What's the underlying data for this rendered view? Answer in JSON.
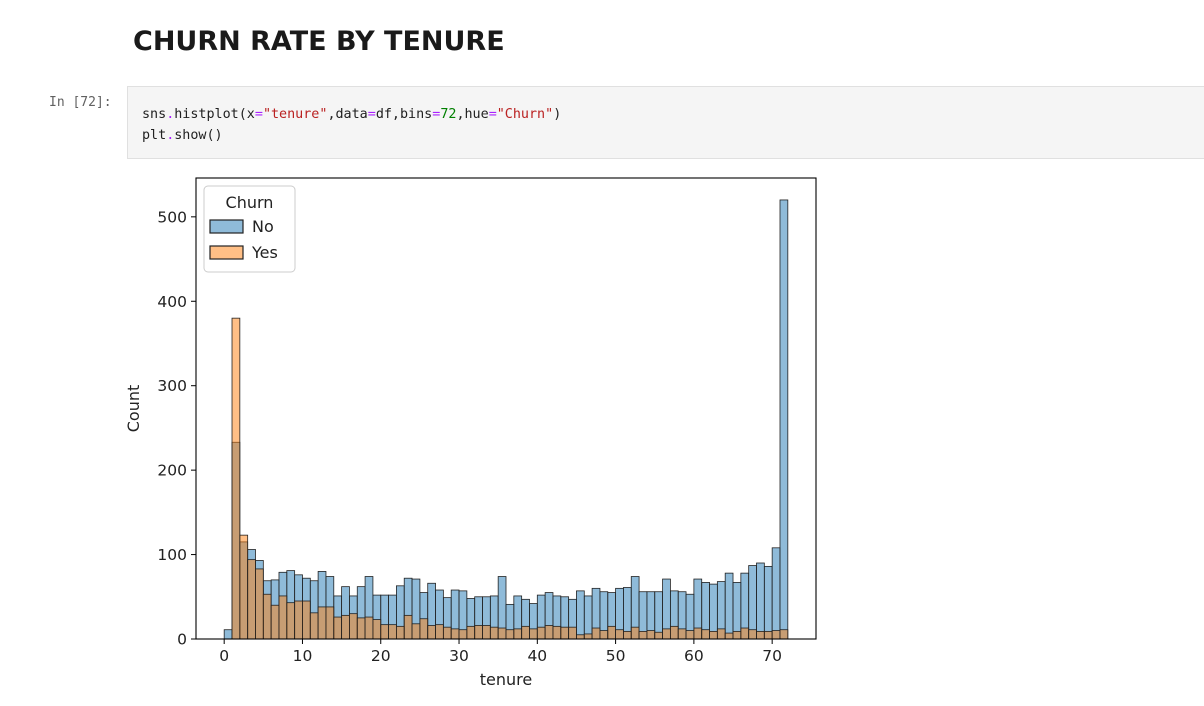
{
  "heading": "CHURN RATE BY TENURE",
  "cell": {
    "prompt": "In [72]:",
    "line1": {
      "t1": "sns",
      "t2": ".",
      "t3": "histplot(x",
      "t4": "=",
      "t5": "\"tenure\"",
      "t6": ",data",
      "t7": "=",
      "t8": "df,bins",
      "t9": "=",
      "t10": "72",
      "t11": ",hue",
      "t12": "=",
      "t13": "\"Churn\"",
      "t14": ")"
    },
    "line2": {
      "t1": "plt",
      "t2": ".",
      "t3": "show()"
    }
  },
  "colors": {
    "no_fill": "#1f77b4",
    "yes_fill": "#ff7f0e",
    "bar_alpha": 0.5,
    "edge": "#222222"
  },
  "chart_data": {
    "type": "bar",
    "subtype": "histogram",
    "xlabel": "tenure",
    "ylabel": "Count",
    "xlim": [
      -3.6,
      75.6
    ],
    "ylim": [
      0,
      546
    ],
    "xticks": [
      0,
      10,
      20,
      30,
      40,
      50,
      60,
      70
    ],
    "yticks": [
      0,
      100,
      200,
      300,
      400,
      500
    ],
    "bins": 72,
    "bin_range": [
      0,
      72
    ],
    "grid": false,
    "legend": {
      "title": "Churn",
      "placement": "upper left",
      "entries": [
        "No",
        "Yes"
      ]
    },
    "series": [
      {
        "name": "No",
        "values": [
          11,
          233,
          115,
          106,
          93,
          69,
          70,
          79,
          81,
          76,
          72,
          69,
          80,
          74,
          51,
          62,
          51,
          62,
          74,
          52,
          52,
          52,
          63,
          72,
          71,
          55,
          66,
          58,
          49,
          58,
          57,
          48,
          50,
          50,
          51,
          74,
          41,
          51,
          47,
          42,
          52,
          55,
          51,
          50,
          47,
          57,
          51,
          60,
          56,
          55,
          60,
          61,
          74,
          56,
          56,
          56,
          71,
          57,
          56,
          53,
          71,
          67,
          65,
          68,
          78,
          67,
          78,
          87,
          90,
          86,
          108,
          520
        ]
      },
      {
        "name": "Yes",
        "values": [
          0,
          380,
          123,
          94,
          83,
          53,
          40,
          51,
          43,
          45,
          45,
          31,
          38,
          38,
          26,
          28,
          30,
          25,
          26,
          23,
          17,
          17,
          15,
          28,
          18,
          24,
          16,
          17,
          14,
          12,
          11,
          15,
          16,
          16,
          14,
          13,
          11,
          12,
          15,
          12,
          14,
          16,
          15,
          14,
          14,
          5,
          6,
          13,
          10,
          15,
          11,
          9,
          14,
          9,
          10,
          8,
          12,
          15,
          12,
          10,
          13,
          11,
          9,
          12,
          7,
          9,
          13,
          11,
          9,
          9,
          10,
          11
        ]
      }
    ]
  }
}
